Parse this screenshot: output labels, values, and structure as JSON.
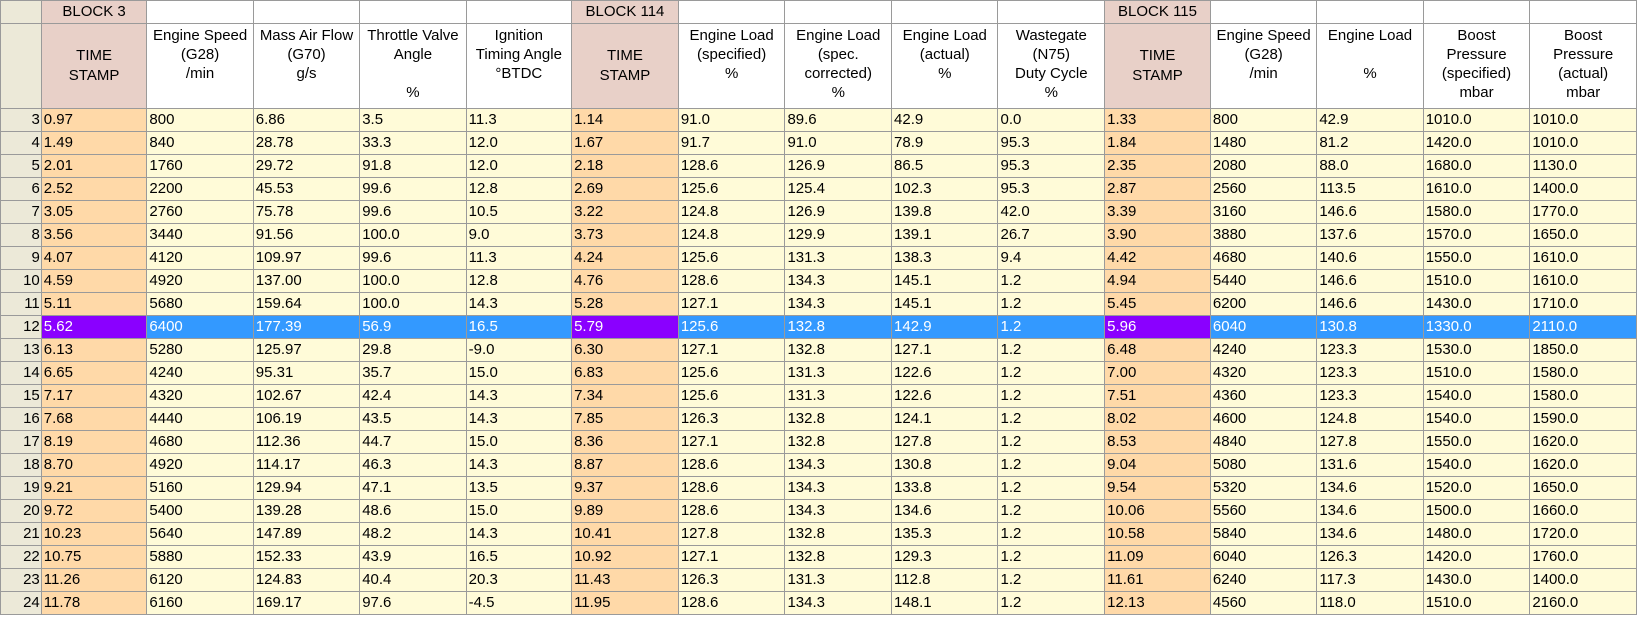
{
  "blocks": {
    "b3": "BLOCK 3",
    "b114": "BLOCK 114",
    "b115": "BLOCK 115"
  },
  "headers": [
    [
      "TIME",
      "STAMP"
    ],
    [
      "Engine Speed",
      "(G28)",
      "/min"
    ],
    [
      "Mass Air Flow",
      "(G70)",
      "g/s"
    ],
    [
      "Throttle Valve",
      "Angle",
      "",
      "%"
    ],
    [
      "Ignition",
      "Timing Angle",
      "°BTDC"
    ],
    [
      "TIME",
      "STAMP"
    ],
    [
      "Engine Load",
      "(specified)",
      "%"
    ],
    [
      "Engine Load",
      "(spec.",
      "corrected)",
      "%"
    ],
    [
      "Engine Load",
      "(actual)",
      "%"
    ],
    [
      "Wastegate",
      "(N75)",
      "Duty Cycle",
      "%"
    ],
    [
      "TIME",
      "STAMP"
    ],
    [
      "Engine Speed",
      "(G28)",
      "/min"
    ],
    [
      "Engine Load",
      "",
      "%"
    ],
    [
      "Boost",
      "Pressure",
      "(specified)",
      "mbar"
    ],
    [
      "Boost",
      "Pressure",
      "(actual)",
      "mbar"
    ]
  ],
  "selected_row": "12",
  "colors": {
    "cell_bg": "#fffbd8",
    "timestamp_bg": "#ffd9a8",
    "timestamp_header_bg": "#e8d0c8",
    "selection_bg": "#3399ff",
    "selection_timestamp_bg": "#8a00ff",
    "row_header_bg": "#ece9d8"
  },
  "rows": [
    {
      "n": "3",
      "cells": [
        "0.97",
        "800",
        "6.86",
        "3.5",
        "11.3",
        "1.14",
        "91.0",
        "89.6",
        "42.9",
        "0.0",
        "1.33",
        "800",
        "42.9",
        "1010.0",
        "1010.0"
      ]
    },
    {
      "n": "4",
      "cells": [
        "1.49",
        "840",
        "28.78",
        "33.3",
        "12.0",
        "1.67",
        "91.7",
        "91.0",
        "78.9",
        "95.3",
        "1.84",
        "1480",
        "81.2",
        "1420.0",
        "1010.0"
      ]
    },
    {
      "n": "5",
      "cells": [
        "2.01",
        "1760",
        "29.72",
        "91.8",
        "12.0",
        "2.18",
        "128.6",
        "126.9",
        "86.5",
        "95.3",
        "2.35",
        "2080",
        "88.0",
        "1680.0",
        "1130.0"
      ]
    },
    {
      "n": "6",
      "cells": [
        "2.52",
        "2200",
        "45.53",
        "99.6",
        "12.8",
        "2.69",
        "125.6",
        "125.4",
        "102.3",
        "95.3",
        "2.87",
        "2560",
        "113.5",
        "1610.0",
        "1400.0"
      ]
    },
    {
      "n": "7",
      "cells": [
        "3.05",
        "2760",
        "75.78",
        "99.6",
        "10.5",
        "3.22",
        "124.8",
        "126.9",
        "139.8",
        "42.0",
        "3.39",
        "3160",
        "146.6",
        "1580.0",
        "1770.0"
      ]
    },
    {
      "n": "8",
      "cells": [
        "3.56",
        "3440",
        "91.56",
        "100.0",
        "9.0",
        "3.73",
        "124.8",
        "129.9",
        "139.1",
        "26.7",
        "3.90",
        "3880",
        "137.6",
        "1570.0",
        "1650.0"
      ]
    },
    {
      "n": "9",
      "cells": [
        "4.07",
        "4120",
        "109.97",
        "99.6",
        "11.3",
        "4.24",
        "125.6",
        "131.3",
        "138.3",
        "9.4",
        "4.42",
        "4680",
        "140.6",
        "1550.0",
        "1610.0"
      ]
    },
    {
      "n": "10",
      "cells": [
        "4.59",
        "4920",
        "137.00",
        "100.0",
        "12.8",
        "4.76",
        "128.6",
        "134.3",
        "145.1",
        "1.2",
        "4.94",
        "5440",
        "146.6",
        "1510.0",
        "1610.0"
      ]
    },
    {
      "n": "11",
      "cells": [
        "5.11",
        "5680",
        "159.64",
        "100.0",
        "14.3",
        "5.28",
        "127.1",
        "134.3",
        "145.1",
        "1.2",
        "5.45",
        "6200",
        "146.6",
        "1430.0",
        "1710.0"
      ]
    },
    {
      "n": "12",
      "cells": [
        "5.62",
        "6400",
        "177.39",
        "56.9",
        "16.5",
        "5.79",
        "125.6",
        "132.8",
        "142.9",
        "1.2",
        "5.96",
        "6040",
        "130.8",
        "1330.0",
        "2110.0"
      ]
    },
    {
      "n": "13",
      "cells": [
        "6.13",
        "5280",
        "125.97",
        "29.8",
        "-9.0",
        "6.30",
        "127.1",
        "132.8",
        "127.1",
        "1.2",
        "6.48",
        "4240",
        "123.3",
        "1530.0",
        "1850.0"
      ]
    },
    {
      "n": "14",
      "cells": [
        "6.65",
        "4240",
        "95.31",
        "35.7",
        "15.0",
        "6.83",
        "125.6",
        "131.3",
        "122.6",
        "1.2",
        "7.00",
        "4320",
        "123.3",
        "1510.0",
        "1580.0"
      ]
    },
    {
      "n": "15",
      "cells": [
        "7.17",
        "4320",
        "102.67",
        "42.4",
        "14.3",
        "7.34",
        "125.6",
        "131.3",
        "122.6",
        "1.2",
        "7.51",
        "4360",
        "123.3",
        "1540.0",
        "1580.0"
      ]
    },
    {
      "n": "16",
      "cells": [
        "7.68",
        "4440",
        "106.19",
        "43.5",
        "14.3",
        "7.85",
        "126.3",
        "132.8",
        "124.1",
        "1.2",
        "8.02",
        "4600",
        "124.8",
        "1540.0",
        "1590.0"
      ]
    },
    {
      "n": "17",
      "cells": [
        "8.19",
        "4680",
        "112.36",
        "44.7",
        "15.0",
        "8.36",
        "127.1",
        "132.8",
        "127.8",
        "1.2",
        "8.53",
        "4840",
        "127.8",
        "1550.0",
        "1620.0"
      ]
    },
    {
      "n": "18",
      "cells": [
        "8.70",
        "4920",
        "114.17",
        "46.3",
        "14.3",
        "8.87",
        "128.6",
        "134.3",
        "130.8",
        "1.2",
        "9.04",
        "5080",
        "131.6",
        "1540.0",
        "1620.0"
      ]
    },
    {
      "n": "19",
      "cells": [
        "9.21",
        "5160",
        "129.94",
        "47.1",
        "13.5",
        "9.37",
        "128.6",
        "134.3",
        "133.8",
        "1.2",
        "9.54",
        "5320",
        "134.6",
        "1520.0",
        "1650.0"
      ]
    },
    {
      "n": "20",
      "cells": [
        "9.72",
        "5400",
        "139.28",
        "48.6",
        "15.0",
        "9.89",
        "128.6",
        "134.3",
        "134.6",
        "1.2",
        "10.06",
        "5560",
        "134.6",
        "1500.0",
        "1660.0"
      ]
    },
    {
      "n": "21",
      "cells": [
        "10.23",
        "5640",
        "147.89",
        "48.2",
        "14.3",
        "10.41",
        "127.8",
        "132.8",
        "135.3",
        "1.2",
        "10.58",
        "5840",
        "134.6",
        "1480.0",
        "1720.0"
      ]
    },
    {
      "n": "22",
      "cells": [
        "10.75",
        "5880",
        "152.33",
        "43.9",
        "16.5",
        "10.92",
        "127.1",
        "132.8",
        "129.3",
        "1.2",
        "11.09",
        "6040",
        "126.3",
        "1420.0",
        "1760.0"
      ]
    },
    {
      "n": "23",
      "cells": [
        "11.26",
        "6120",
        "124.83",
        "40.4",
        "20.3",
        "11.43",
        "126.3",
        "131.3",
        "112.8",
        "1.2",
        "11.61",
        "6240",
        "117.3",
        "1430.0",
        "1400.0"
      ]
    },
    {
      "n": "24",
      "cells": [
        "11.78",
        "6160",
        "169.17",
        "97.6",
        "-4.5",
        "11.95",
        "128.6",
        "134.3",
        "148.1",
        "1.2",
        "12.13",
        "4560",
        "118.0",
        "1510.0",
        "2160.0"
      ]
    }
  ]
}
